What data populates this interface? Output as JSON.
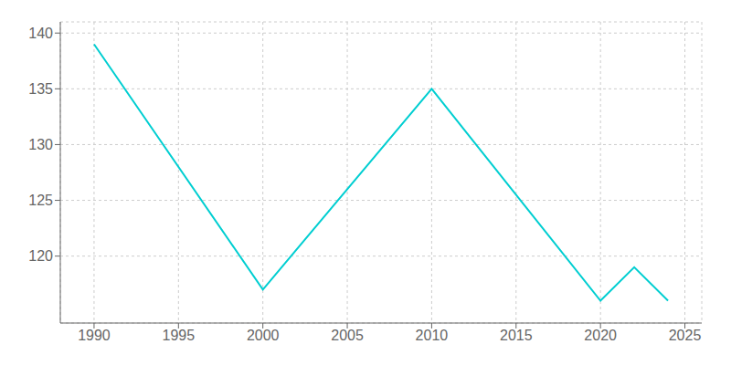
{
  "chart_data": {
    "type": "line",
    "x": [
      1990,
      2000,
      2010,
      2020,
      2022,
      2024
    ],
    "values": [
      139,
      117,
      135,
      116,
      119,
      116
    ],
    "color": "#00CED1",
    "xlim": [
      1988,
      2026
    ],
    "ylim": [
      114,
      141
    ],
    "xticks": [
      1990,
      1995,
      2000,
      2005,
      2010,
      2015,
      2020,
      2025
    ],
    "yticks": [
      120,
      125,
      130,
      135,
      140
    ],
    "grid": true
  }
}
